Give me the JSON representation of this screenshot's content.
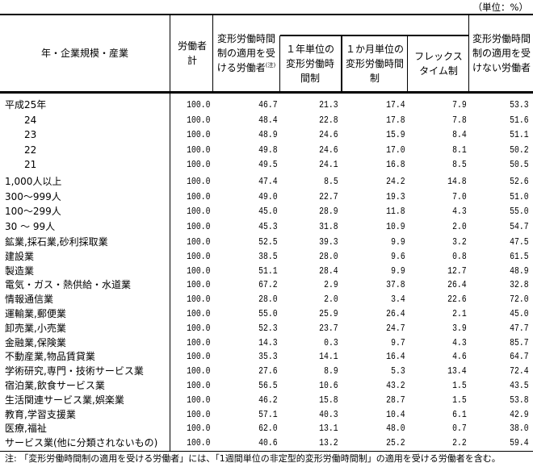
{
  "unit_label": "（単位：%）",
  "headers": {
    "category": "年・企業規模・産業",
    "total": "労働者計",
    "applied": "変形労働時間制の適用を受ける労働者",
    "applied_note_mark": "(注)",
    "one_year": "１年単位の変形労働時間制",
    "one_month": "１か月単位の変形労働時間制",
    "flex": "フレックスタイム制",
    "not_applied": "変形労働時間制の適用を受けない労働者"
  },
  "groups": [
    {
      "rows": [
        {
          "label": "平成25年",
          "indent": false,
          "values": [
            "100.0",
            "46.7",
            "21.3",
            "17.4",
            "7.9",
            "53.3"
          ]
        },
        {
          "label": "24",
          "indent": true,
          "values": [
            "100.0",
            "48.4",
            "22.8",
            "17.8",
            "7.8",
            "51.6"
          ]
        },
        {
          "label": "23",
          "indent": true,
          "values": [
            "100.0",
            "48.9",
            "24.6",
            "15.9",
            "8.4",
            "51.1"
          ]
        },
        {
          "label": "22",
          "indent": true,
          "values": [
            "100.0",
            "49.8",
            "24.6",
            "17.0",
            "8.1",
            "50.2"
          ]
        },
        {
          "label": "21",
          "indent": true,
          "values": [
            "100.0",
            "49.5",
            "24.1",
            "16.8",
            "8.5",
            "50.5"
          ]
        }
      ]
    },
    {
      "rows": [
        {
          "label": "1,000人以上",
          "indent": false,
          "values": [
            "100.0",
            "47.4",
            "8.5",
            "24.2",
            "14.8",
            "52.6"
          ]
        },
        {
          "label": "300～999人",
          "indent": false,
          "values": [
            "100.0",
            "49.0",
            "22.7",
            "19.3",
            "7.0",
            "51.0"
          ]
        },
        {
          "label": "100～299人",
          "indent": false,
          "values": [
            "100.0",
            "45.0",
            "28.9",
            "11.8",
            "4.3",
            "55.0"
          ]
        },
        {
          "label": "30 ～ 99人",
          "indent": false,
          "values": [
            "100.0",
            "45.3",
            "31.8",
            "10.9",
            "2.0",
            "54.7"
          ]
        }
      ]
    },
    {
      "rows": [
        {
          "label": "鉱業,採石業,砂利採取業",
          "indent": false,
          "values": [
            "100.0",
            "52.5",
            "39.3",
            "9.9",
            "3.2",
            "47.5"
          ]
        },
        {
          "label": "建設業",
          "indent": false,
          "values": [
            "100.0",
            "38.5",
            "28.0",
            "9.6",
            "0.8",
            "61.5"
          ]
        },
        {
          "label": "製造業",
          "indent": false,
          "values": [
            "100.0",
            "51.1",
            "28.4",
            "9.9",
            "12.7",
            "48.9"
          ]
        },
        {
          "label": "電気・ガス・熱供給・水道業",
          "indent": false,
          "values": [
            "100.0",
            "67.2",
            "2.9",
            "37.8",
            "26.4",
            "32.8"
          ]
        },
        {
          "label": "情報通信業",
          "indent": false,
          "values": [
            "100.0",
            "28.0",
            "2.0",
            "3.4",
            "22.6",
            "72.0"
          ]
        },
        {
          "label": "運輸業,郵便業",
          "indent": false,
          "values": [
            "100.0",
            "55.0",
            "25.9",
            "26.4",
            "2.1",
            "45.0"
          ]
        },
        {
          "label": "卸売業,小売業",
          "indent": false,
          "values": [
            "100.0",
            "52.3",
            "23.7",
            "24.7",
            "3.9",
            "47.7"
          ]
        },
        {
          "label": "金融業,保険業",
          "indent": false,
          "values": [
            "100.0",
            "14.3",
            "0.3",
            "9.7",
            "4.3",
            "85.7"
          ]
        },
        {
          "label": "不動産業,物品賃貸業",
          "indent": false,
          "values": [
            "100.0",
            "35.3",
            "14.1",
            "16.4",
            "4.6",
            "64.7"
          ]
        },
        {
          "label": "学術研究,専門・技術サービス業",
          "indent": false,
          "values": [
            "100.0",
            "27.6",
            "8.9",
            "5.3",
            "13.4",
            "72.4"
          ]
        },
        {
          "label": "宿泊業,飲食サービス業",
          "indent": false,
          "values": [
            "100.0",
            "56.5",
            "10.6",
            "43.2",
            "1.5",
            "43.5"
          ]
        },
        {
          "label": "生活関連サービス業,娯楽業",
          "indent": false,
          "values": [
            "100.0",
            "46.2",
            "15.8",
            "28.7",
            "1.5",
            "53.8"
          ]
        },
        {
          "label": "教育,学習支援業",
          "indent": false,
          "values": [
            "100.0",
            "57.1",
            "40.3",
            "10.4",
            "6.1",
            "42.9"
          ]
        },
        {
          "label": "医療,福祉",
          "indent": false,
          "values": [
            "100.0",
            "62.0",
            "13.1",
            "48.0",
            "0.7",
            "38.0"
          ]
        },
        {
          "label": "サービス業(他に分類されないもの)",
          "indent": false,
          "values": [
            "100.0",
            "40.6",
            "13.2",
            "25.2",
            "2.2",
            "59.4"
          ]
        }
      ]
    }
  ],
  "note": "注: 「変形労働時間制の適用を受ける労働者」には、「1週間単位の非定型的変形労働時間制」の適用を受ける労働者を含む。"
}
